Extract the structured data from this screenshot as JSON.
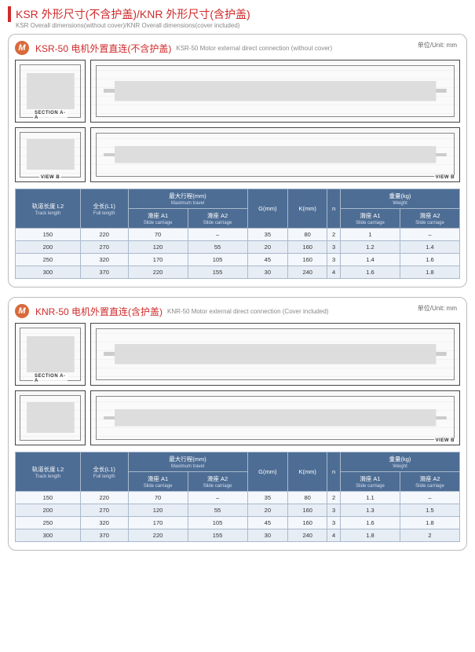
{
  "header": {
    "cn": "KSR 外形尺寸(不含护盖)/KNR 外形尺寸(含护盖)",
    "en": "KSR Overall dimensions(without cover)/KNR Overall dimensions(cover included)"
  },
  "sections": [
    {
      "badge": "M",
      "title_cn": "KSR-50 电机外置直连(不含护盖)",
      "title_en": "KSR-50 Motor  external direct connection (without cover)",
      "unit": "单位/Unit: mm",
      "drawings": {
        "row1": {
          "left_label": "SECTION A-A",
          "views": [
            "top-small",
            "top-long"
          ]
        },
        "row2": {
          "left_label": "VIEW B",
          "right_label": "VIEW B",
          "views": [
            "iso-small",
            "iso-long"
          ]
        }
      },
      "table": {
        "headers": [
          {
            "cn": "轨道长度 L2",
            "en": "Track length"
          },
          {
            "cn": "全长(L1)",
            "en": "Full length"
          },
          {
            "group_cn": "最大行程(mm)",
            "group_en": "Maximum travel",
            "cols": [
              {
                "cn": "滑座 A1",
                "en": "Slide carriage"
              },
              {
                "cn": "滑座 A2",
                "en": "Slide carriage"
              }
            ]
          },
          {
            "cn": "G(mm)",
            "en": ""
          },
          {
            "cn": "K(mm)",
            "en": ""
          },
          {
            "cn": "n",
            "en": ""
          },
          {
            "group_cn": "重量(kg)",
            "group_en": "Weight",
            "cols": [
              {
                "cn": "滑座 A1",
                "en": "Slide carriage"
              },
              {
                "cn": "滑座 A2",
                "en": "Slide carriage"
              }
            ]
          }
        ],
        "rows": [
          [
            "150",
            "220",
            "70",
            "–",
            "35",
            "80",
            "2",
            "1",
            "–"
          ],
          [
            "200",
            "270",
            "120",
            "55",
            "20",
            "160",
            "3",
            "1.2",
            "1.4"
          ],
          [
            "250",
            "320",
            "170",
            "105",
            "45",
            "160",
            "3",
            "1.4",
            "1.6"
          ],
          [
            "300",
            "370",
            "220",
            "155",
            "30",
            "240",
            "4",
            "1.6",
            "1.8"
          ]
        ]
      }
    },
    {
      "badge": "M",
      "title_cn": "KNR-50 电机外置直连(含护盖)",
      "title_en": "KNR-50 Motor  external direct connection (Cover included)",
      "unit": "单位/Unit: mm",
      "drawings": {
        "row1": {
          "left_label": "SECTION A-A",
          "views": [
            "top-small",
            "top-long"
          ]
        },
        "row2": {
          "left_label": "",
          "right_label": "VIEW B",
          "views": [
            "iso-small",
            "iso-long"
          ]
        }
      },
      "table": {
        "headers": [
          {
            "cn": "轨道长度 L2",
            "en": "Track length"
          },
          {
            "cn": "全长(L1)",
            "en": "Full length"
          },
          {
            "group_cn": "最大行程(mm)",
            "group_en": "Maximum travel",
            "cols": [
              {
                "cn": "滑座 A1",
                "en": "Slide carriage"
              },
              {
                "cn": "滑座 A2",
                "en": "Slide carriage"
              }
            ]
          },
          {
            "cn": "G(mm)",
            "en": ""
          },
          {
            "cn": "K(mm)",
            "en": ""
          },
          {
            "cn": "n",
            "en": ""
          },
          {
            "group_cn": "重量(kg)",
            "group_en": "Weight",
            "cols": [
              {
                "cn": "滑座 A1",
                "en": "Slide carriage"
              },
              {
                "cn": "滑座 A2",
                "en": "Slide carriage"
              }
            ]
          }
        ],
        "rows": [
          [
            "150",
            "220",
            "70",
            "–",
            "35",
            "80",
            "2",
            "1.1",
            "–"
          ],
          [
            "200",
            "270",
            "120",
            "55",
            "20",
            "160",
            "3",
            "1.3",
            "1.5"
          ],
          [
            "250",
            "320",
            "170",
            "105",
            "45",
            "160",
            "3",
            "1.6",
            "1.8"
          ],
          [
            "300",
            "370",
            "220",
            "155",
            "30",
            "240",
            "4",
            "1.8",
            "2"
          ]
        ]
      }
    }
  ],
  "style": {
    "accent_color": "#d02a2a",
    "badge_color": "#d86a3c",
    "th_bg": "#4d6d94",
    "row_odd_bg": "#f4f7fb",
    "row_even_bg": "#e7edf5",
    "border_color": "#a9b9cc"
  }
}
